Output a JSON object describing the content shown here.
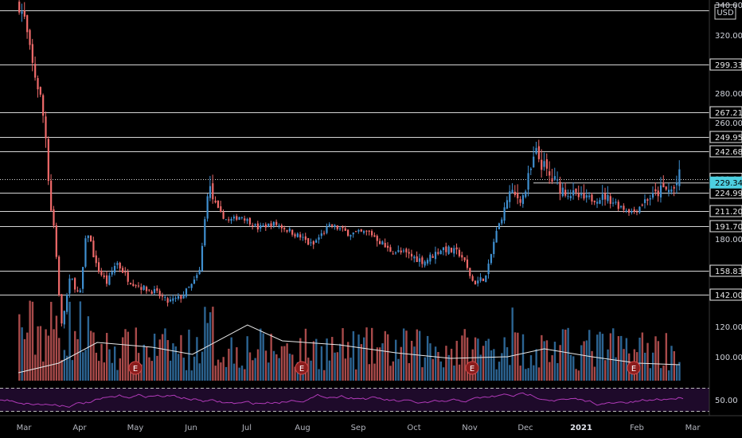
{
  "chart_data": {
    "type": "candlestick",
    "currency": "USD",
    "price_axis_ticks": [
      340,
      320,
      280,
      260,
      180,
      120,
      100
    ],
    "rsi_axis_ticks": [
      50
    ],
    "x_tick_labels": [
      "Mar",
      "Apr",
      "May",
      "Jun",
      "Jul",
      "Aug",
      "Sep",
      "Oct",
      "Nov",
      "Dec",
      "2021",
      "Feb",
      "Mar"
    ],
    "x_tick_years": [
      "2021"
    ],
    "horizontal_levels": [
      {
        "value": 336.5,
        "label": ""
      },
      {
        "value": 299.33,
        "label": "299.33"
      },
      {
        "value": 267.21,
        "label": "267.21"
      },
      {
        "value": 249.95,
        "label": "249.95"
      },
      {
        "value": 242.68,
        "label": "242.68"
      },
      {
        "value": 224.99,
        "label": "224.99"
      },
      {
        "value": 211.2,
        "label": "211.20"
      },
      {
        "value": 191.7,
        "label": "191.70"
      },
      {
        "value": 158.83,
        "label": "158.83"
      },
      {
        "value": 142.0,
        "label": "142.00"
      }
    ],
    "dotted_level": {
      "value": 230.94,
      "label": "230.94"
    },
    "last_price": {
      "value": 229.34,
      "label": "229.34",
      "color": "#4dd0e1"
    },
    "earnings_marker_label": "E",
    "earnings_markers": [
      "May",
      "Aug",
      "Nov",
      "Feb"
    ],
    "price_path": [
      [
        "2020-02-27",
        340
      ],
      [
        "2020-03-01",
        330
      ],
      [
        "2020-03-05",
        300
      ],
      [
        "2020-03-10",
        275
      ],
      [
        "2020-03-13",
        245
      ],
      [
        "2020-03-17",
        190
      ],
      [
        "2020-03-21",
        120
      ],
      [
        "2020-03-26",
        155
      ],
      [
        "2020-03-31",
        140
      ],
      [
        "2020-04-04",
        188
      ],
      [
        "2020-04-09",
        162
      ],
      [
        "2020-04-15",
        150
      ],
      [
        "2020-04-20",
        165
      ],
      [
        "2020-04-27",
        152
      ],
      [
        "2020-05-04",
        147
      ],
      [
        "2020-05-11",
        144
      ],
      [
        "2020-05-18",
        137
      ],
      [
        "2020-05-25",
        140
      ],
      [
        "2020-06-01",
        150
      ],
      [
        "2020-06-05",
        160
      ],
      [
        "2020-06-09",
        230
      ],
      [
        "2020-06-14",
        212
      ],
      [
        "2020-06-20",
        198
      ],
      [
        "2020-06-27",
        205
      ],
      [
        "2020-07-06",
        190
      ],
      [
        "2020-07-15",
        195
      ],
      [
        "2020-07-25",
        186
      ],
      [
        "2020-08-05",
        175
      ],
      [
        "2020-08-15",
        193
      ],
      [
        "2020-08-25",
        185
      ],
      [
        "2020-09-05",
        186
      ],
      [
        "2020-09-15",
        173
      ],
      [
        "2020-09-25",
        170
      ],
      [
        "2020-10-05",
        165
      ],
      [
        "2020-10-15",
        174
      ],
      [
        "2020-10-25",
        170
      ],
      [
        "2020-11-01",
        150
      ],
      [
        "2020-11-08",
        155
      ],
      [
        "2020-11-15",
        195
      ],
      [
        "2020-11-20",
        225
      ],
      [
        "2020-11-27",
        220
      ],
      [
        "2020-12-05",
        242
      ],
      [
        "2020-12-12",
        232
      ],
      [
        "2020-12-20",
        226
      ],
      [
        "2021-01-01",
        220
      ],
      [
        "2021-01-12",
        222
      ],
      [
        "2021-01-20",
        215
      ],
      [
        "2021-01-27",
        210
      ],
      [
        "2021-02-03",
        220
      ],
      [
        "2021-02-12",
        226
      ],
      [
        "2021-02-18",
        226
      ],
      [
        "2021-02-22",
        233
      ]
    ],
    "volume_avg_path": [
      [
        "2020-02-27",
        0.1
      ],
      [
        "2020-03-20",
        0.22
      ],
      [
        "2020-04-10",
        0.48
      ],
      [
        "2020-05-10",
        0.42
      ],
      [
        "2020-06-01",
        0.33
      ],
      [
        "2020-07-01",
        0.7
      ],
      [
        "2020-07-20",
        0.5
      ],
      [
        "2020-08-20",
        0.45
      ],
      [
        "2020-09-20",
        0.35
      ],
      [
        "2020-10-20",
        0.28
      ],
      [
        "2020-11-20",
        0.3
      ],
      [
        "2020-12-10",
        0.4
      ],
      [
        "2021-01-05",
        0.3
      ],
      [
        "2021-01-30",
        0.22
      ],
      [
        "2021-02-22",
        0.2
      ]
    ],
    "colors": {
      "up": "#3f8fd0",
      "down": "#ef6a6a",
      "grid_line": "#d6d6d6",
      "volume_avg": "#e8e8e8",
      "rsi": "#b03ab8",
      "rsi_bg": "#1e0a2a",
      "marker": "#8b1c1c"
    }
  }
}
